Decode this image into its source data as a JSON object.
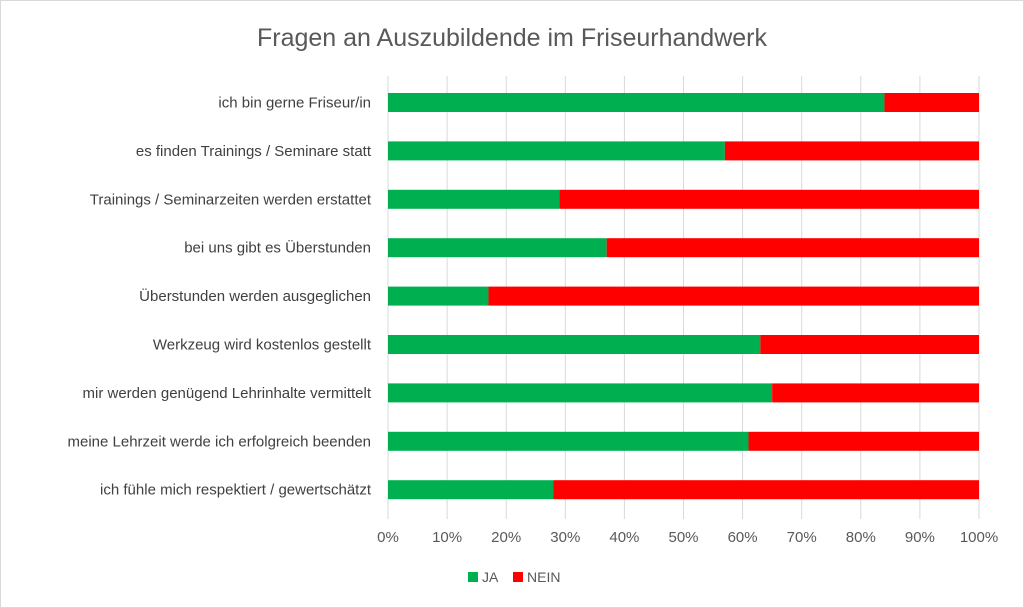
{
  "chart_data": {
    "type": "bar",
    "orientation": "horizontal",
    "stacked": "percent",
    "title": "Fragen an Auszubildende im Friseurhandwerk",
    "categories": [
      "ich bin gerne Friseur/in",
      "es finden Trainings / Seminare statt",
      "Trainings / Seminarzeiten werden erstattet",
      "bei uns gibt es Überstunden",
      "Überstunden werden ausgeglichen",
      "Werkzeug wird kostenlos gestellt",
      "mir werden genügend Lehrinhalte vermittelt",
      "meine Lehrzeit werde ich erfolgreich beenden",
      "ich fühle mich respektiert / gewertschätzt"
    ],
    "series": [
      {
        "name": "JA",
        "color": "#00b050",
        "values": [
          84,
          57,
          29,
          37,
          17,
          63,
          65,
          61,
          28
        ]
      },
      {
        "name": "NEIN",
        "color": "#ff0000",
        "values": [
          16,
          43,
          71,
          63,
          83,
          37,
          35,
          39,
          72
        ]
      }
    ],
    "xlim": [
      0,
      100
    ],
    "xticks": [
      "0%",
      "10%",
      "20%",
      "30%",
      "40%",
      "50%",
      "60%",
      "70%",
      "80%",
      "90%",
      "100%"
    ],
    "grid": "vertical",
    "legend": "bottom"
  }
}
